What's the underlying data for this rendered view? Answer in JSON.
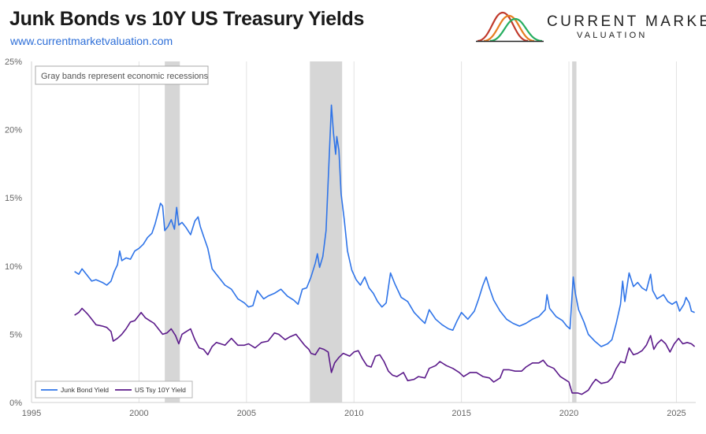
{
  "header": {
    "title": "Junk Bonds vs 10Y US Treasury Yields",
    "site": "www.currentmarketvaluation.com",
    "brand_line1": "CURRENT MARKET",
    "brand_line2": "VALUATION",
    "brand_logo_icon": "bell-curves-logo-icon",
    "brand_logo_colors": [
      "#c0392b",
      "#e67e22",
      "#27ae60"
    ]
  },
  "chart_data": {
    "type": "line",
    "title": "Junk Bonds vs 10Y US Treasury Yields",
    "xlim": [
      1995,
      2025.9
    ],
    "ylim": [
      0,
      25
    ],
    "x_ticks": [
      1995,
      2000,
      2005,
      2010,
      2015,
      2020,
      2025
    ],
    "x_tick_labels": [
      "1995",
      "2000",
      "2005",
      "2010",
      "2015",
      "2020",
      "2025"
    ],
    "y_ticks": [
      0,
      5,
      10,
      15,
      20,
      25
    ],
    "y_tick_labels": [
      "0%",
      "5%",
      "10%",
      "15%",
      "20%",
      "25%"
    ],
    "grid": "vertical gridlines at x ticks",
    "annotation": "Gray bands represent economic recessions",
    "recession_color": "#d6d6d6",
    "recessions": [
      [
        2001.2,
        2001.9
      ],
      [
        2007.95,
        2009.45
      ],
      [
        2020.15,
        2020.35
      ]
    ],
    "legend_position": "bottom-left",
    "series": [
      {
        "name": "Junk Bond Yield",
        "color": "#2f74e8",
        "points": [
          [
            1997.0,
            9.6
          ],
          [
            1997.2,
            9.4
          ],
          [
            1997.35,
            9.8
          ],
          [
            1997.6,
            9.3
          ],
          [
            1997.8,
            8.9
          ],
          [
            1998.0,
            9.0
          ],
          [
            1998.3,
            8.8
          ],
          [
            1998.5,
            8.6
          ],
          [
            1998.7,
            8.9
          ],
          [
            1998.85,
            9.6
          ],
          [
            1999.0,
            10.1
          ],
          [
            1999.1,
            11.1
          ],
          [
            1999.2,
            10.4
          ],
          [
            1999.4,
            10.6
          ],
          [
            1999.6,
            10.5
          ],
          [
            1999.8,
            11.1
          ],
          [
            2000.0,
            11.3
          ],
          [
            2000.2,
            11.6
          ],
          [
            2000.4,
            12.1
          ],
          [
            2000.6,
            12.4
          ],
          [
            2000.75,
            13.1
          ],
          [
            2000.9,
            14.0
          ],
          [
            2001.0,
            14.6
          ],
          [
            2001.1,
            14.4
          ],
          [
            2001.2,
            12.6
          ],
          [
            2001.35,
            12.9
          ],
          [
            2001.5,
            13.4
          ],
          [
            2001.65,
            12.7
          ],
          [
            2001.75,
            14.3
          ],
          [
            2001.85,
            13.0
          ],
          [
            2002.0,
            13.2
          ],
          [
            2002.2,
            12.8
          ],
          [
            2002.4,
            12.3
          ],
          [
            2002.6,
            13.3
          ],
          [
            2002.75,
            13.6
          ],
          [
            2002.85,
            12.9
          ],
          [
            2003.0,
            12.2
          ],
          [
            2003.2,
            11.3
          ],
          [
            2003.4,
            9.8
          ],
          [
            2003.6,
            9.4
          ],
          [
            2003.8,
            9.0
          ],
          [
            2004.0,
            8.6
          ],
          [
            2004.3,
            8.3
          ],
          [
            2004.6,
            7.6
          ],
          [
            2004.9,
            7.3
          ],
          [
            2005.1,
            7.0
          ],
          [
            2005.3,
            7.1
          ],
          [
            2005.5,
            8.2
          ],
          [
            2005.8,
            7.6
          ],
          [
            2006.0,
            7.8
          ],
          [
            2006.3,
            8.0
          ],
          [
            2006.6,
            8.3
          ],
          [
            2006.9,
            7.8
          ],
          [
            2007.2,
            7.5
          ],
          [
            2007.4,
            7.2
          ],
          [
            2007.6,
            8.3
          ],
          [
            2007.8,
            8.4
          ],
          [
            2008.0,
            9.2
          ],
          [
            2008.2,
            10.2
          ],
          [
            2008.3,
            10.9
          ],
          [
            2008.4,
            9.9
          ],
          [
            2008.55,
            10.7
          ],
          [
            2008.7,
            12.6
          ],
          [
            2008.85,
            18.0
          ],
          [
            2008.95,
            21.8
          ],
          [
            2009.05,
            19.7
          ],
          [
            2009.15,
            18.2
          ],
          [
            2009.2,
            19.5
          ],
          [
            2009.3,
            18.5
          ],
          [
            2009.4,
            15.3
          ],
          [
            2009.55,
            13.4
          ],
          [
            2009.7,
            11.1
          ],
          [
            2009.9,
            9.7
          ],
          [
            2010.1,
            9.0
          ],
          [
            2010.3,
            8.6
          ],
          [
            2010.5,
            9.2
          ],
          [
            2010.7,
            8.4
          ],
          [
            2010.9,
            8.0
          ],
          [
            2011.1,
            7.4
          ],
          [
            2011.3,
            7.0
          ],
          [
            2011.5,
            7.3
          ],
          [
            2011.7,
            9.5
          ],
          [
            2011.9,
            8.7
          ],
          [
            2012.2,
            7.7
          ],
          [
            2012.5,
            7.4
          ],
          [
            2012.8,
            6.6
          ],
          [
            2013.1,
            6.1
          ],
          [
            2013.3,
            5.8
          ],
          [
            2013.5,
            6.8
          ],
          [
            2013.8,
            6.1
          ],
          [
            2014.1,
            5.7
          ],
          [
            2014.4,
            5.4
          ],
          [
            2014.6,
            5.3
          ],
          [
            2014.8,
            6.0
          ],
          [
            2015.0,
            6.6
          ],
          [
            2015.3,
            6.1
          ],
          [
            2015.6,
            6.7
          ],
          [
            2015.8,
            7.6
          ],
          [
            2016.0,
            8.6
          ],
          [
            2016.15,
            9.2
          ],
          [
            2016.3,
            8.4
          ],
          [
            2016.5,
            7.5
          ],
          [
            2016.8,
            6.7
          ],
          [
            2017.1,
            6.1
          ],
          [
            2017.4,
            5.8
          ],
          [
            2017.7,
            5.6
          ],
          [
            2018.0,
            5.8
          ],
          [
            2018.3,
            6.1
          ],
          [
            2018.6,
            6.3
          ],
          [
            2018.9,
            6.8
          ],
          [
            2018.98,
            7.9
          ],
          [
            2019.1,
            6.9
          ],
          [
            2019.4,
            6.3
          ],
          [
            2019.7,
            6.0
          ],
          [
            2019.9,
            5.6
          ],
          [
            2020.05,
            5.4
          ],
          [
            2020.2,
            9.2
          ],
          [
            2020.3,
            8.0
          ],
          [
            2020.45,
            6.8
          ],
          [
            2020.7,
            5.9
          ],
          [
            2020.9,
            5.0
          ],
          [
            2021.2,
            4.5
          ],
          [
            2021.5,
            4.1
          ],
          [
            2021.8,
            4.3
          ],
          [
            2022.0,
            4.6
          ],
          [
            2022.2,
            5.8
          ],
          [
            2022.4,
            7.2
          ],
          [
            2022.5,
            8.9
          ],
          [
            2022.6,
            7.4
          ],
          [
            2022.8,
            9.5
          ],
          [
            2023.0,
            8.5
          ],
          [
            2023.2,
            8.8
          ],
          [
            2023.4,
            8.4
          ],
          [
            2023.6,
            8.2
          ],
          [
            2023.8,
            9.4
          ],
          [
            2023.9,
            8.2
          ],
          [
            2024.1,
            7.6
          ],
          [
            2024.4,
            7.9
          ],
          [
            2024.6,
            7.4
          ],
          [
            2024.8,
            7.2
          ],
          [
            2025.0,
            7.4
          ],
          [
            2025.15,
            6.7
          ],
          [
            2025.35,
            7.2
          ],
          [
            2025.45,
            7.7
          ],
          [
            2025.6,
            7.3
          ],
          [
            2025.7,
            6.7
          ],
          [
            2025.85,
            6.6
          ]
        ]
      },
      {
        "name": "US Tsy 10Y Yield",
        "color": "#5b1a8a",
        "points": [
          [
            1997.0,
            6.4
          ],
          [
            1997.2,
            6.6
          ],
          [
            1997.35,
            6.9
          ],
          [
            1997.6,
            6.5
          ],
          [
            1997.8,
            6.1
          ],
          [
            1998.0,
            5.7
          ],
          [
            1998.3,
            5.6
          ],
          [
            1998.5,
            5.5
          ],
          [
            1998.7,
            5.2
          ],
          [
            1998.8,
            4.5
          ],
          [
            1999.0,
            4.7
          ],
          [
            1999.2,
            5.0
          ],
          [
            1999.4,
            5.4
          ],
          [
            1999.6,
            5.9
          ],
          [
            1999.8,
            6.0
          ],
          [
            2000.0,
            6.4
          ],
          [
            2000.1,
            6.6
          ],
          [
            2000.3,
            6.2
          ],
          [
            2000.5,
            6.0
          ],
          [
            2000.7,
            5.8
          ],
          [
            2000.9,
            5.4
          ],
          [
            2001.1,
            5.0
          ],
          [
            2001.3,
            5.1
          ],
          [
            2001.5,
            5.4
          ],
          [
            2001.7,
            4.9
          ],
          [
            2001.85,
            4.3
          ],
          [
            2002.0,
            5.0
          ],
          [
            2002.2,
            5.2
          ],
          [
            2002.4,
            5.4
          ],
          [
            2002.6,
            4.6
          ],
          [
            2002.8,
            4.0
          ],
          [
            2003.0,
            3.9
          ],
          [
            2003.2,
            3.5
          ],
          [
            2003.4,
            4.1
          ],
          [
            2003.6,
            4.4
          ],
          [
            2003.8,
            4.3
          ],
          [
            2004.0,
            4.2
          ],
          [
            2004.3,
            4.7
          ],
          [
            2004.6,
            4.2
          ],
          [
            2004.9,
            4.2
          ],
          [
            2005.1,
            4.3
          ],
          [
            2005.4,
            4.0
          ],
          [
            2005.7,
            4.4
          ],
          [
            2006.0,
            4.5
          ],
          [
            2006.3,
            5.1
          ],
          [
            2006.5,
            5.0
          ],
          [
            2006.8,
            4.6
          ],
          [
            2007.0,
            4.8
          ],
          [
            2007.3,
            5.0
          ],
          [
            2007.5,
            4.6
          ],
          [
            2007.7,
            4.2
          ],
          [
            2007.9,
            3.9
          ],
          [
            2008.0,
            3.6
          ],
          [
            2008.2,
            3.5
          ],
          [
            2008.4,
            4.0
          ],
          [
            2008.6,
            3.9
          ],
          [
            2008.8,
            3.7
          ],
          [
            2008.95,
            2.2
          ],
          [
            2009.1,
            2.9
          ],
          [
            2009.3,
            3.3
          ],
          [
            2009.5,
            3.6
          ],
          [
            2009.8,
            3.4
          ],
          [
            2010.0,
            3.7
          ],
          [
            2010.2,
            3.8
          ],
          [
            2010.4,
            3.2
          ],
          [
            2010.6,
            2.7
          ],
          [
            2010.8,
            2.6
          ],
          [
            2011.0,
            3.4
          ],
          [
            2011.2,
            3.5
          ],
          [
            2011.4,
            3.0
          ],
          [
            2011.6,
            2.3
          ],
          [
            2011.8,
            2.0
          ],
          [
            2012.0,
            1.9
          ],
          [
            2012.3,
            2.2
          ],
          [
            2012.5,
            1.6
          ],
          [
            2012.8,
            1.7
          ],
          [
            2013.0,
            1.9
          ],
          [
            2013.3,
            1.8
          ],
          [
            2013.5,
            2.5
          ],
          [
            2013.8,
            2.7
          ],
          [
            2014.0,
            3.0
          ],
          [
            2014.3,
            2.7
          ],
          [
            2014.6,
            2.5
          ],
          [
            2014.9,
            2.2
          ],
          [
            2015.1,
            1.9
          ],
          [
            2015.4,
            2.2
          ],
          [
            2015.7,
            2.2
          ],
          [
            2016.0,
            1.9
          ],
          [
            2016.3,
            1.8
          ],
          [
            2016.5,
            1.5
          ],
          [
            2016.8,
            1.8
          ],
          [
            2016.95,
            2.4
          ],
          [
            2017.2,
            2.4
          ],
          [
            2017.5,
            2.3
          ],
          [
            2017.8,
            2.3
          ],
          [
            2018.0,
            2.6
          ],
          [
            2018.3,
            2.9
          ],
          [
            2018.6,
            2.9
          ],
          [
            2018.8,
            3.1
          ],
          [
            2019.0,
            2.7
          ],
          [
            2019.3,
            2.5
          ],
          [
            2019.6,
            1.9
          ],
          [
            2019.8,
            1.7
          ],
          [
            2020.0,
            1.5
          ],
          [
            2020.15,
            0.7
          ],
          [
            2020.4,
            0.7
          ],
          [
            2020.6,
            0.6
          ],
          [
            2020.9,
            0.9
          ],
          [
            2021.1,
            1.4
          ],
          [
            2021.25,
            1.7
          ],
          [
            2021.5,
            1.4
          ],
          [
            2021.8,
            1.5
          ],
          [
            2022.0,
            1.8
          ],
          [
            2022.2,
            2.5
          ],
          [
            2022.4,
            3.0
          ],
          [
            2022.6,
            2.9
          ],
          [
            2022.8,
            4.0
          ],
          [
            2023.0,
            3.5
          ],
          [
            2023.2,
            3.6
          ],
          [
            2023.4,
            3.8
          ],
          [
            2023.6,
            4.2
          ],
          [
            2023.8,
            4.9
          ],
          [
            2023.95,
            3.9
          ],
          [
            2024.1,
            4.3
          ],
          [
            2024.3,
            4.6
          ],
          [
            2024.5,
            4.3
          ],
          [
            2024.7,
            3.7
          ],
          [
            2024.9,
            4.3
          ],
          [
            2025.1,
            4.7
          ],
          [
            2025.3,
            4.3
          ],
          [
            2025.5,
            4.4
          ],
          [
            2025.7,
            4.3
          ],
          [
            2025.85,
            4.1
          ]
        ]
      }
    ]
  }
}
